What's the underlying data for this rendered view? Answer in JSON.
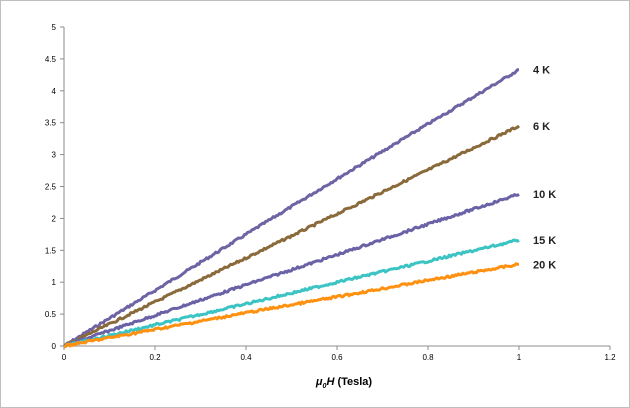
{
  "chart_data": {
    "type": "line",
    "title": "",
    "xlabel_var": "μ",
    "xlabel_sub": "0",
    "xlabel_var2": "H",
    "xlabel_rest": " (Tesla)",
    "ylabel": "",
    "xlim": [
      0,
      1.2
    ],
    "ylim": [
      0,
      5
    ],
    "x_ticks": [
      "0",
      "0.2",
      "0.4",
      "0.6",
      "0.8",
      "1",
      "1.2"
    ],
    "y_ticks": [
      "0",
      "0.5",
      "1",
      "1.5",
      "2",
      "2.5",
      "3",
      "3.5",
      "4",
      "4.5",
      "5"
    ],
    "grid": false,
    "legend": "none",
    "series": [
      {
        "name": "4 K",
        "color": "#6f63a4",
        "x": [
          0,
          0.2,
          0.4,
          0.6,
          0.8,
          1.0
        ],
        "y": [
          0,
          0.87,
          1.75,
          2.62,
          3.48,
          4.33
        ]
      },
      {
        "name": "6 K",
        "color": "#8a6a3a",
        "x": [
          0,
          0.2,
          0.4,
          0.6,
          0.8,
          1.0
        ],
        "y": [
          0,
          0.69,
          1.38,
          2.07,
          2.76,
          3.45
        ]
      },
      {
        "name": "10 K",
        "color": "#6a62a6",
        "x": [
          0,
          0.2,
          0.4,
          0.6,
          0.8,
          1.0
        ],
        "y": [
          0,
          0.48,
          0.96,
          1.43,
          1.91,
          2.38
        ]
      },
      {
        "name": "15 K",
        "color": "#3cc3c3",
        "x": [
          0,
          0.2,
          0.4,
          0.6,
          0.8,
          1.0
        ],
        "y": [
          0,
          0.33,
          0.66,
          1.0,
          1.33,
          1.66
        ]
      },
      {
        "name": "20 K",
        "color": "#ff9010",
        "x": [
          0,
          0.2,
          0.4,
          0.6,
          0.8,
          1.0
        ],
        "y": [
          0,
          0.26,
          0.52,
          0.77,
          1.03,
          1.28
        ]
      }
    ]
  }
}
